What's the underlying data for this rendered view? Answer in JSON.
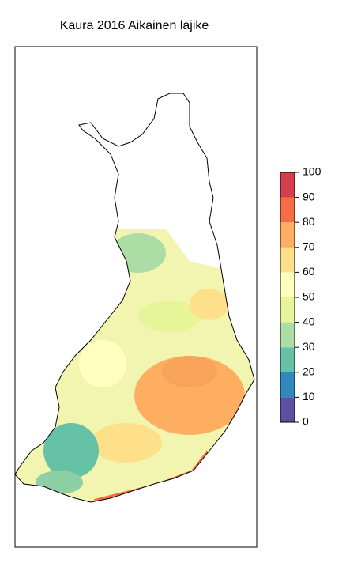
{
  "title": "Kaura 2016 Aikainen lajike",
  "legend": {
    "ticks": [
      0,
      10,
      20,
      30,
      40,
      50,
      60,
      70,
      80,
      90,
      100
    ],
    "colors": [
      "#5E4FA2",
      "#3288BD",
      "#66C2A5",
      "#ABDDA4",
      "#E6F598",
      "#FFFFBF",
      "#FEE08B",
      "#FDAE61",
      "#F46D43",
      "#D53E4F"
    ]
  }
}
